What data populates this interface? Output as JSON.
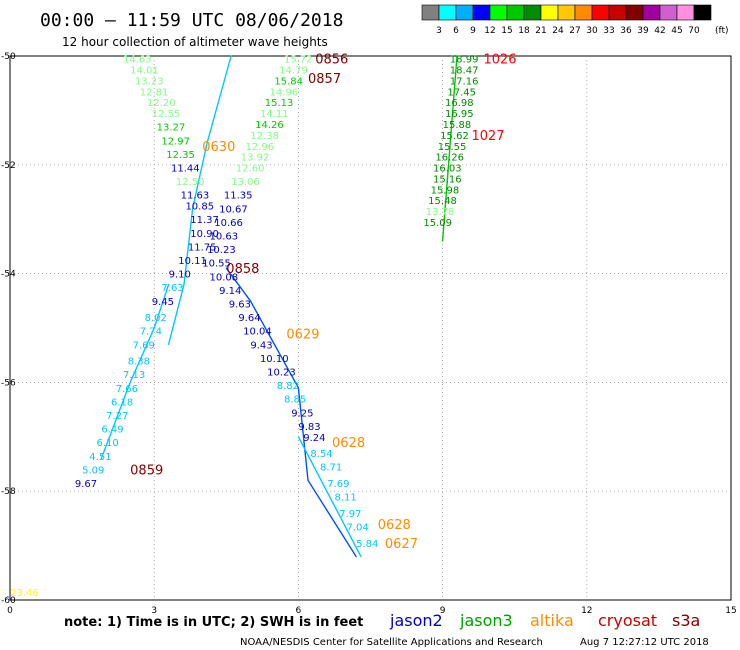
{
  "header": {
    "title": "00:00 – 11:59 UTC 08/06/2018",
    "subtitle": "12 hour collection of altimeter wave heights"
  },
  "colorbar": {
    "boxes": [
      "#808080",
      "#00ffff",
      "#00b0ff",
      "#0000ff",
      "#00ff00",
      "#00c800",
      "#008c00",
      "#ffff00",
      "#ffc800",
      "#ff8c00",
      "#ff0000",
      "#c80000",
      "#800000",
      "#a000a0",
      "#d060d0",
      "#ff90e0",
      "#000000"
    ],
    "labels": [
      "3",
      "6",
      "9",
      "12",
      "15",
      "18",
      "21",
      "24",
      "27",
      "30",
      "33",
      "36",
      "39",
      "42",
      "45",
      "70"
    ],
    "unit": "(ft)"
  },
  "footer": {
    "note": "note:  1) Time is in UTC;  2) SWH is in feet",
    "legend": [
      {
        "name": "jason2",
        "color": "#0000c8"
      },
      {
        "name": "jason3",
        "color": "#00a000"
      },
      {
        "name": "altika",
        "color": "#ff8c00"
      },
      {
        "name": "cryosat",
        "color": "#c80000"
      },
      {
        "name": "s3a",
        "color": "#800000"
      }
    ],
    "credit": "NOAA/NESDIS Center for Satellite Applications and Research",
    "timestamp": "Aug  7 12:27:12 UTC 2018"
  },
  "chart_data": {
    "type": "scatter",
    "xlim": [
      0,
      15
    ],
    "ylim": [
      -60,
      -50
    ],
    "xticks": [
      "0",
      "3",
      "6",
      "9",
      "12",
      "15"
    ],
    "yticks": [
      "-50",
      "-52",
      "-54",
      "-56",
      "-58",
      "-60"
    ],
    "grid": true,
    "tracks": [
      {
        "x": [
          3.3,
          3.62,
          3.8,
          4.1,
          4.6
        ],
        "y": [
          -55.3,
          -54.2,
          -52.8,
          -51.6,
          -50.0
        ],
        "color": "#00c8ff"
      },
      {
        "x": [
          4.5,
          5.0,
          6.0,
          6.2,
          7.2
        ],
        "y": [
          -53.9,
          -54.5,
          -56.1,
          -57.8,
          -59.2
        ],
        "color": "#0050ff"
      },
      {
        "x": [
          6.0,
          7.3
        ],
        "y": [
          -57.0,
          -59.2
        ],
        "color": "#00c8ff"
      },
      {
        "x": [
          3.3,
          3.0,
          2.5,
          1.9
        ],
        "y": [
          -54.2,
          -55.0,
          -56.0,
          -57.4
        ],
        "color": "#00c8ff"
      },
      {
        "x": [
          9.0,
          9.3
        ],
        "y": [
          -53.4,
          -50.0
        ],
        "color": "#00c800"
      }
    ],
    "points": [
      {
        "x": 2.35,
        "y": -50.05,
        "v": "14.63",
        "c": "#80ff80"
      },
      {
        "x": 2.5,
        "y": -50.25,
        "v": "14.01",
        "c": "#80ff80"
      },
      {
        "x": 2.6,
        "y": -50.45,
        "v": "13.23",
        "c": "#80ff80"
      },
      {
        "x": 2.7,
        "y": -50.65,
        "v": "12.81",
        "c": "#80ff80"
      },
      {
        "x": 2.85,
        "y": -50.85,
        "v": "12.20",
        "c": "#80ff80"
      },
      {
        "x": 2.95,
        "y": -51.05,
        "v": "12.55",
        "c": "#80ff80"
      },
      {
        "x": 3.05,
        "y": -51.3,
        "v": "13.27",
        "c": "#00c800"
      },
      {
        "x": 3.15,
        "y": -51.55,
        "v": "12.97",
        "c": "#00c800"
      },
      {
        "x": 3.25,
        "y": -51.8,
        "v": "12.35",
        "c": "#00c800"
      },
      {
        "x": 3.35,
        "y": -52.05,
        "v": "11.44",
        "c": "#0000c8"
      },
      {
        "x": 3.45,
        "y": -52.3,
        "v": "12.50",
        "c": "#80ff80"
      },
      {
        "x": 3.55,
        "y": -52.55,
        "v": "11.63",
        "c": "#0000c8"
      },
      {
        "x": 3.65,
        "y": -52.75,
        "v": "10.85",
        "c": "#0000c8"
      },
      {
        "x": 3.75,
        "y": -53.0,
        "v": "11.37",
        "c": "#0000c8"
      },
      {
        "x": 3.75,
        "y": -53.25,
        "v": "10.90",
        "c": "#0000c8"
      },
      {
        "x": 3.7,
        "y": -53.5,
        "v": "11.75",
        "c": "#0000c8"
      },
      {
        "x": 3.5,
        "y": -53.75,
        "v": "10.11",
        "c": "#0000c8"
      },
      {
        "x": 3.3,
        "y": -54.0,
        "v": "9.10",
        "c": "#0000c8"
      },
      {
        "x": 3.15,
        "y": -54.25,
        "v": "7.63",
        "c": "#00c8ff"
      },
      {
        "x": 2.95,
        "y": -54.5,
        "v": "9.45",
        "c": "#0000c8"
      },
      {
        "x": 2.8,
        "y": -54.8,
        "v": "8.02",
        "c": "#00c8ff"
      },
      {
        "x": 2.7,
        "y": -55.05,
        "v": "7.74",
        "c": "#00c8ff"
      },
      {
        "x": 2.55,
        "y": -55.3,
        "v": "7.69",
        "c": "#00c8ff"
      },
      {
        "x": 2.45,
        "y": -55.6,
        "v": "8.38",
        "c": "#00c8ff"
      },
      {
        "x": 2.35,
        "y": -55.85,
        "v": "7.13",
        "c": "#00c8ff"
      },
      {
        "x": 2.2,
        "y": -56.1,
        "v": "7.66",
        "c": "#00c8ff"
      },
      {
        "x": 2.1,
        "y": -56.35,
        "v": "6.18",
        "c": "#00c8ff"
      },
      {
        "x": 2.0,
        "y": -56.6,
        "v": "7.27",
        "c": "#00c8ff"
      },
      {
        "x": 1.9,
        "y": -56.85,
        "v": "6.49",
        "c": "#00c8ff"
      },
      {
        "x": 1.8,
        "y": -57.1,
        "v": "6.10",
        "c": "#00c8ff"
      },
      {
        "x": 1.65,
        "y": -57.35,
        "v": "4.51",
        "c": "#00c8ff"
      },
      {
        "x": 1.5,
        "y": -57.6,
        "v": "5.09",
        "c": "#00c8ff"
      },
      {
        "x": 1.35,
        "y": -57.85,
        "v": "9.67",
        "c": "#0000c8"
      },
      {
        "x": 5.7,
        "y": -50.05,
        "v": "15.72",
        "c": "#80ff80"
      },
      {
        "x": 5.6,
        "y": -50.25,
        "v": "14.79",
        "c": "#80ff80"
      },
      {
        "x": 5.5,
        "y": -50.45,
        "v": "15.84",
        "c": "#00c800"
      },
      {
        "x": 5.4,
        "y": -50.65,
        "v": "14.96",
        "c": "#80ff80"
      },
      {
        "x": 5.3,
        "y": -50.85,
        "v": "15.13",
        "c": "#00c800"
      },
      {
        "x": 5.2,
        "y": -51.05,
        "v": "14.11",
        "c": "#80ff80"
      },
      {
        "x": 5.1,
        "y": -51.25,
        "v": "14.26",
        "c": "#00c800"
      },
      {
        "x": 5.0,
        "y": -51.45,
        "v": "12.38",
        "c": "#80ff80"
      },
      {
        "x": 4.9,
        "y": -51.65,
        "v": "12.96",
        "c": "#80ff80"
      },
      {
        "x": 4.8,
        "y": -51.85,
        "v": "13.92",
        "c": "#80ff80"
      },
      {
        "x": 4.7,
        "y": -52.05,
        "v": "12.60",
        "c": "#80ff80"
      },
      {
        "x": 4.6,
        "y": -52.3,
        "v": "13.06",
        "c": "#80ff80"
      },
      {
        "x": 4.45,
        "y": -52.55,
        "v": "11.35",
        "c": "#0000c8"
      },
      {
        "x": 4.35,
        "y": -52.8,
        "v": "10.67",
        "c": "#0000c8"
      },
      {
        "x": 4.25,
        "y": -53.05,
        "v": "10.66",
        "c": "#0000c8"
      },
      {
        "x": 4.15,
        "y": -53.3,
        "v": "10.63",
        "c": "#0000c8"
      },
      {
        "x": 4.1,
        "y": -53.55,
        "v": "10.23",
        "c": "#0000c8"
      },
      {
        "x": 4.0,
        "y": -53.8,
        "v": "10.55",
        "c": "#0000c8"
      },
      {
        "x": 4.15,
        "y": -54.05,
        "v": "10.08",
        "c": "#0000c8"
      },
      {
        "x": 4.35,
        "y": -54.3,
        "v": "9.14",
        "c": "#0000c8"
      },
      {
        "x": 4.55,
        "y": -54.55,
        "v": "9.63",
        "c": "#0000c8"
      },
      {
        "x": 4.75,
        "y": -54.8,
        "v": "9.64",
        "c": "#0000c8"
      },
      {
        "x": 4.85,
        "y": -55.05,
        "v": "10.04",
        "c": "#0000c8"
      },
      {
        "x": 5.0,
        "y": -55.3,
        "v": "9.43",
        "c": "#0000c8"
      },
      {
        "x": 5.2,
        "y": -55.55,
        "v": "10.10",
        "c": "#0000c8"
      },
      {
        "x": 5.35,
        "y": -55.8,
        "v": "10.23",
        "c": "#0000c8"
      },
      {
        "x": 5.55,
        "y": -56.05,
        "v": "8.82",
        "c": "#00c8ff"
      },
      {
        "x": 5.7,
        "y": -56.3,
        "v": "8.85",
        "c": "#00c8ff"
      },
      {
        "x": 5.85,
        "y": -56.55,
        "v": "9.25",
        "c": "#0000c8"
      },
      {
        "x": 6.0,
        "y": -56.8,
        "v": "9.83",
        "c": "#0000c8"
      },
      {
        "x": 6.1,
        "y": -57.0,
        "v": "9.24",
        "c": "#0000c8"
      },
      {
        "x": 6.25,
        "y": -57.3,
        "v": "8.54",
        "c": "#00c8ff"
      },
      {
        "x": 6.45,
        "y": -57.55,
        "v": "8.71",
        "c": "#00c8ff"
      },
      {
        "x": 6.6,
        "y": -57.85,
        "v": "7.69",
        "c": "#00c8ff"
      },
      {
        "x": 6.75,
        "y": -58.1,
        "v": "8.11",
        "c": "#00c8ff"
      },
      {
        "x": 6.85,
        "y": -58.4,
        "v": "7.97",
        "c": "#00c8ff"
      },
      {
        "x": 7.0,
        "y": -58.65,
        "v": "7.04",
        "c": "#00c8ff"
      },
      {
        "x": 7.2,
        "y": -58.95,
        "v": "5.84",
        "c": "#00c8ff"
      },
      {
        "x": 9.15,
        "y": -50.05,
        "v": "18.99",
        "c": "#008c00"
      },
      {
        "x": 9.15,
        "y": -50.25,
        "v": "18.47",
        "c": "#008c00"
      },
      {
        "x": 9.15,
        "y": -50.45,
        "v": "17.16",
        "c": "#008c00"
      },
      {
        "x": 9.1,
        "y": -50.65,
        "v": "17.45",
        "c": "#008c00"
      },
      {
        "x": 9.05,
        "y": -50.85,
        "v": "16.98",
        "c": "#008c00"
      },
      {
        "x": 9.05,
        "y": -51.05,
        "v": "16.95",
        "c": "#008c00"
      },
      {
        "x": 9.0,
        "y": -51.25,
        "v": "15.88",
        "c": "#008c00"
      },
      {
        "x": 8.95,
        "y": -51.45,
        "v": "15.62",
        "c": "#008c00"
      },
      {
        "x": 8.9,
        "y": -51.65,
        "v": "15.55",
        "c": "#008c00"
      },
      {
        "x": 8.85,
        "y": -51.85,
        "v": "16.26",
        "c": "#008c00"
      },
      {
        "x": 8.8,
        "y": -52.05,
        "v": "16.03",
        "c": "#008c00"
      },
      {
        "x": 8.8,
        "y": -52.25,
        "v": "15.16",
        "c": "#008c00"
      },
      {
        "x": 8.75,
        "y": -52.45,
        "v": "15.98",
        "c": "#008c00"
      },
      {
        "x": 8.7,
        "y": -52.65,
        "v": "15.48",
        "c": "#008c00"
      },
      {
        "x": 8.65,
        "y": -52.85,
        "v": "13.78",
        "c": "#80ff80"
      },
      {
        "x": 8.6,
        "y": -53.05,
        "v": "15.09",
        "c": "#008c00"
      },
      {
        "x": 0.0,
        "y": -59.85,
        "v": "23.46",
        "c": "#ffff00"
      }
    ],
    "passes": [
      {
        "x": 6.35,
        "y": -50.05,
        "t": "0856",
        "c": "#800000"
      },
      {
        "x": 6.2,
        "y": -50.4,
        "t": "0857",
        "c": "#800000"
      },
      {
        "x": 4.0,
        "y": -51.65,
        "t": "0630",
        "c": "#ff8c00"
      },
      {
        "x": 4.5,
        "y": -53.9,
        "t": "0858",
        "c": "#800000"
      },
      {
        "x": 5.75,
        "y": -55.1,
        "t": "0629",
        "c": "#ff8c00"
      },
      {
        "x": 2.5,
        "y": -57.6,
        "t": "0859",
        "c": "#800000"
      },
      {
        "x": 6.7,
        "y": -57.1,
        "t": "0628",
        "c": "#ff8c00"
      },
      {
        "x": 7.65,
        "y": -58.6,
        "t": "0628",
        "c": "#ff8c00"
      },
      {
        "x": 7.8,
        "y": -58.95,
        "t": "0627",
        "c": "#ff8c00"
      },
      {
        "x": 9.85,
        "y": -50.05,
        "t": "1026",
        "c": "#ff0000"
      },
      {
        "x": 9.6,
        "y": -51.45,
        "t": "1027",
        "c": "#ff0000"
      }
    ]
  }
}
